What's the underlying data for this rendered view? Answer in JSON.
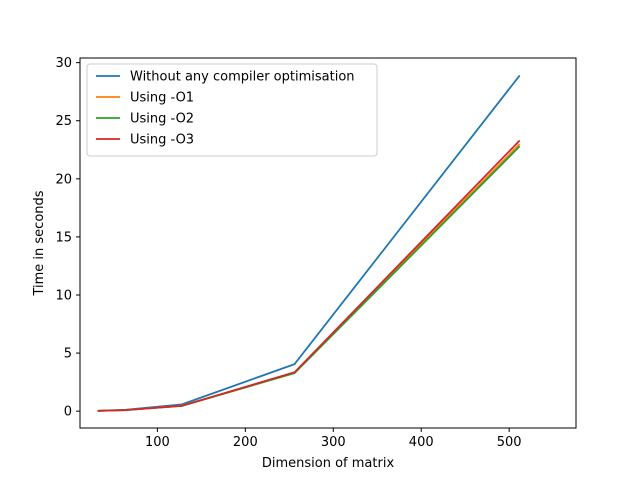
{
  "chart_data": {
    "type": "line",
    "title": "",
    "xlabel": "Dimension of matrix",
    "ylabel": "Time in seconds",
    "xlim": [
      12,
      576
    ],
    "ylim": [
      -1.45,
      30.4
    ],
    "x_ticks": [
      100,
      200,
      300,
      400,
      500
    ],
    "y_ticks": [
      0,
      5,
      10,
      15,
      20,
      25,
      30
    ],
    "x": [
      32,
      64,
      128,
      256,
      512
    ],
    "grid": false,
    "legend_position": "top-left",
    "series": [
      {
        "name": "Without any compiler optimisation",
        "color": "#1f77b4",
        "values": [
          0.03,
          0.12,
          0.58,
          4.05,
          28.9
        ]
      },
      {
        "name": "Using -O1",
        "color": "#ff7f0e",
        "values": [
          0.02,
          0.09,
          0.47,
          3.32,
          23.0
        ]
      },
      {
        "name": "Using -O2",
        "color": "#2ca02c",
        "values": [
          0.02,
          0.09,
          0.45,
          3.28,
          22.8
        ]
      },
      {
        "name": "Using -O3",
        "color": "#d62728",
        "values": [
          0.02,
          0.09,
          0.46,
          3.35,
          23.3
        ]
      }
    ]
  }
}
